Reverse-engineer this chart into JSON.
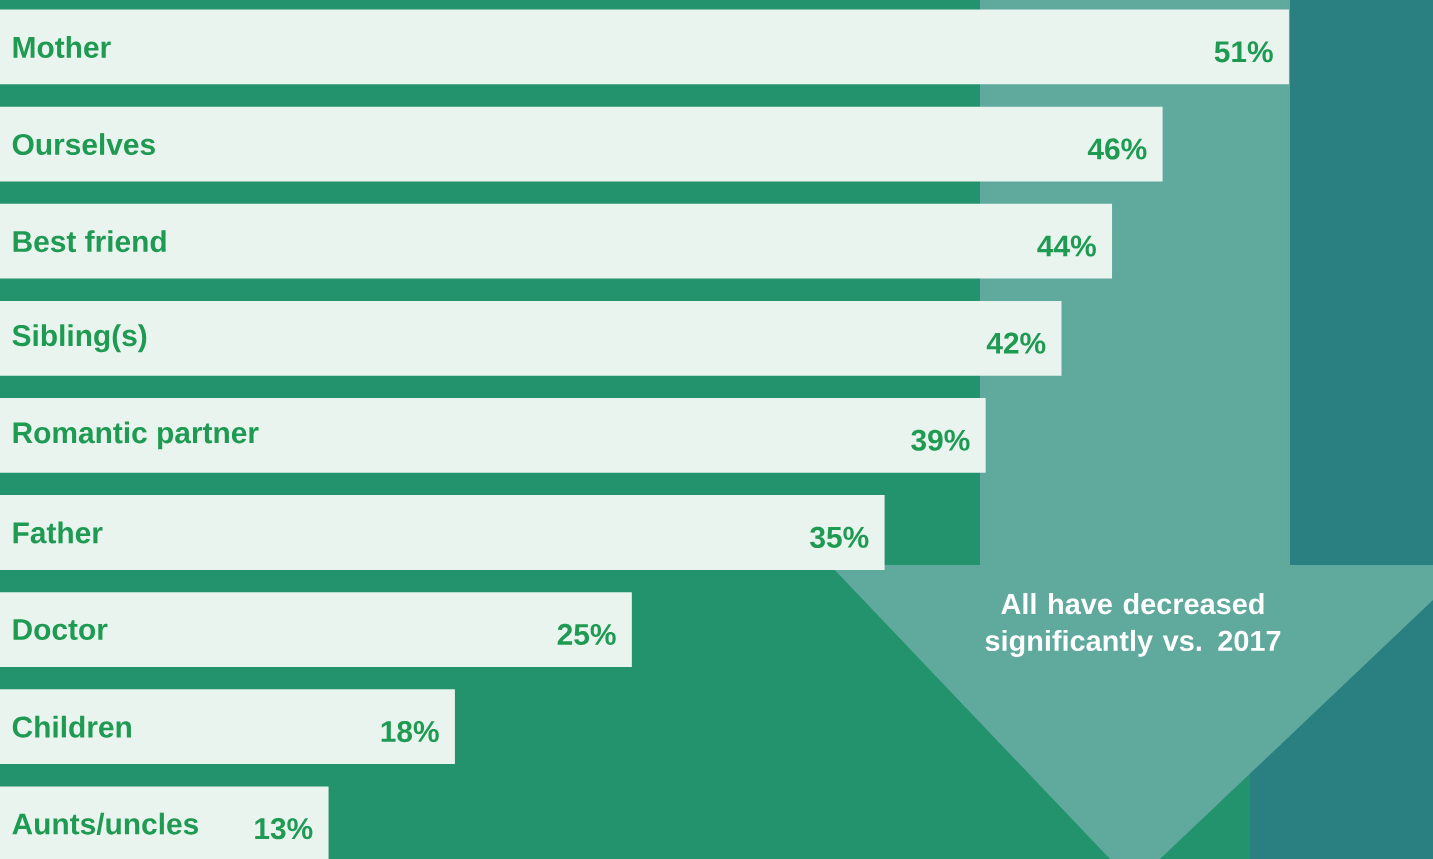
{
  "chart_data": {
    "type": "bar",
    "orientation": "horizontal",
    "categories": [
      "Mother",
      "Ourselves",
      "Best friend",
      "Sibling(s)",
      "Romantic partner",
      "Father",
      "Doctor",
      "Children",
      "Aunts/uncles"
    ],
    "values": [
      51,
      46,
      44,
      42,
      39,
      35,
      25,
      18,
      13
    ],
    "value_labels": [
      "51%",
      "46%",
      "44%",
      "42%",
      "39%",
      "35%",
      "25%",
      "18%",
      "13%"
    ],
    "color": "#eaf4ef",
    "annotations": [
      "All have decreased significantly vs. 2017"
    ]
  }
}
